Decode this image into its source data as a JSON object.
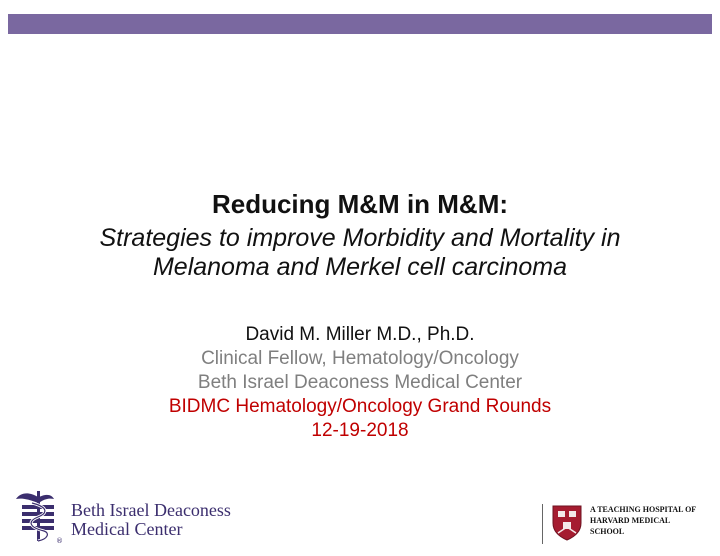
{
  "slide": {
    "title": "Reducing M&M in M&M:",
    "subtitle_line1": "Strategies to improve Morbidity and Mortality in",
    "subtitle_line2": "Melanoma and Merkel cell carcinoma",
    "author": "David M. Miller M.D., Ph.D.",
    "role": "Clinical Fellow, Hematology/Oncology",
    "institution": "Beth Israel Deaconess Medical Center",
    "event": "BIDMC Hematology/Oncology Grand Rounds",
    "date": "12-19-2018"
  },
  "footer": {
    "bidmc_line1": "Beth Israel Deaconess",
    "bidmc_line2": "Medical Center",
    "registered_mark": "®",
    "harvard_line1": "A TEACHING HOSPITAL OF",
    "harvard_line2": "HARVARD MEDICAL",
    "harvard_line3": "SCHOOL"
  },
  "colors": {
    "accent_bar": "#7a68a0",
    "title_text": "#111111",
    "affiliation_text": "#7f7f7f",
    "event_text": "#c00000",
    "logo_purple": "#3b2e6e",
    "harvard_crimson": "#a51c30"
  }
}
